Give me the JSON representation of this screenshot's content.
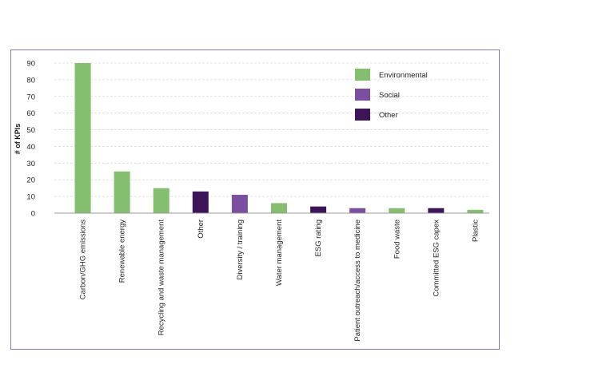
{
  "chart_data": {
    "type": "bar",
    "title": "",
    "xlabel": "",
    "ylabel": "# of KPIs",
    "ylim": [
      0,
      90
    ],
    "yticks": [
      0,
      10,
      20,
      30,
      40,
      50,
      60,
      70,
      80,
      90
    ],
    "grid": true,
    "legend_position": "top-right",
    "legend": [
      {
        "name": "Environmental",
        "color": "#83bf6e"
      },
      {
        "name": "Social",
        "color": "#7b4fa0"
      },
      {
        "name": "Other",
        "color": "#3b1558"
      }
    ],
    "categories": [
      "Carbon/GHG emissions",
      "Renewable energy",
      "Recycling and waste management",
      "Other",
      "Diversity / training",
      "Water management",
      "ESG rating",
      "Patient outreach/access to medicine",
      "Food waste",
      "Committed ESG capex",
      "Plastic"
    ],
    "values": [
      90,
      25,
      15,
      13,
      11,
      6,
      4,
      3,
      3,
      3,
      2
    ],
    "groups": [
      "Environmental",
      "Environmental",
      "Environmental",
      "Other",
      "Social",
      "Environmental",
      "Other",
      "Social",
      "Environmental",
      "Other",
      "Environmental"
    ]
  }
}
